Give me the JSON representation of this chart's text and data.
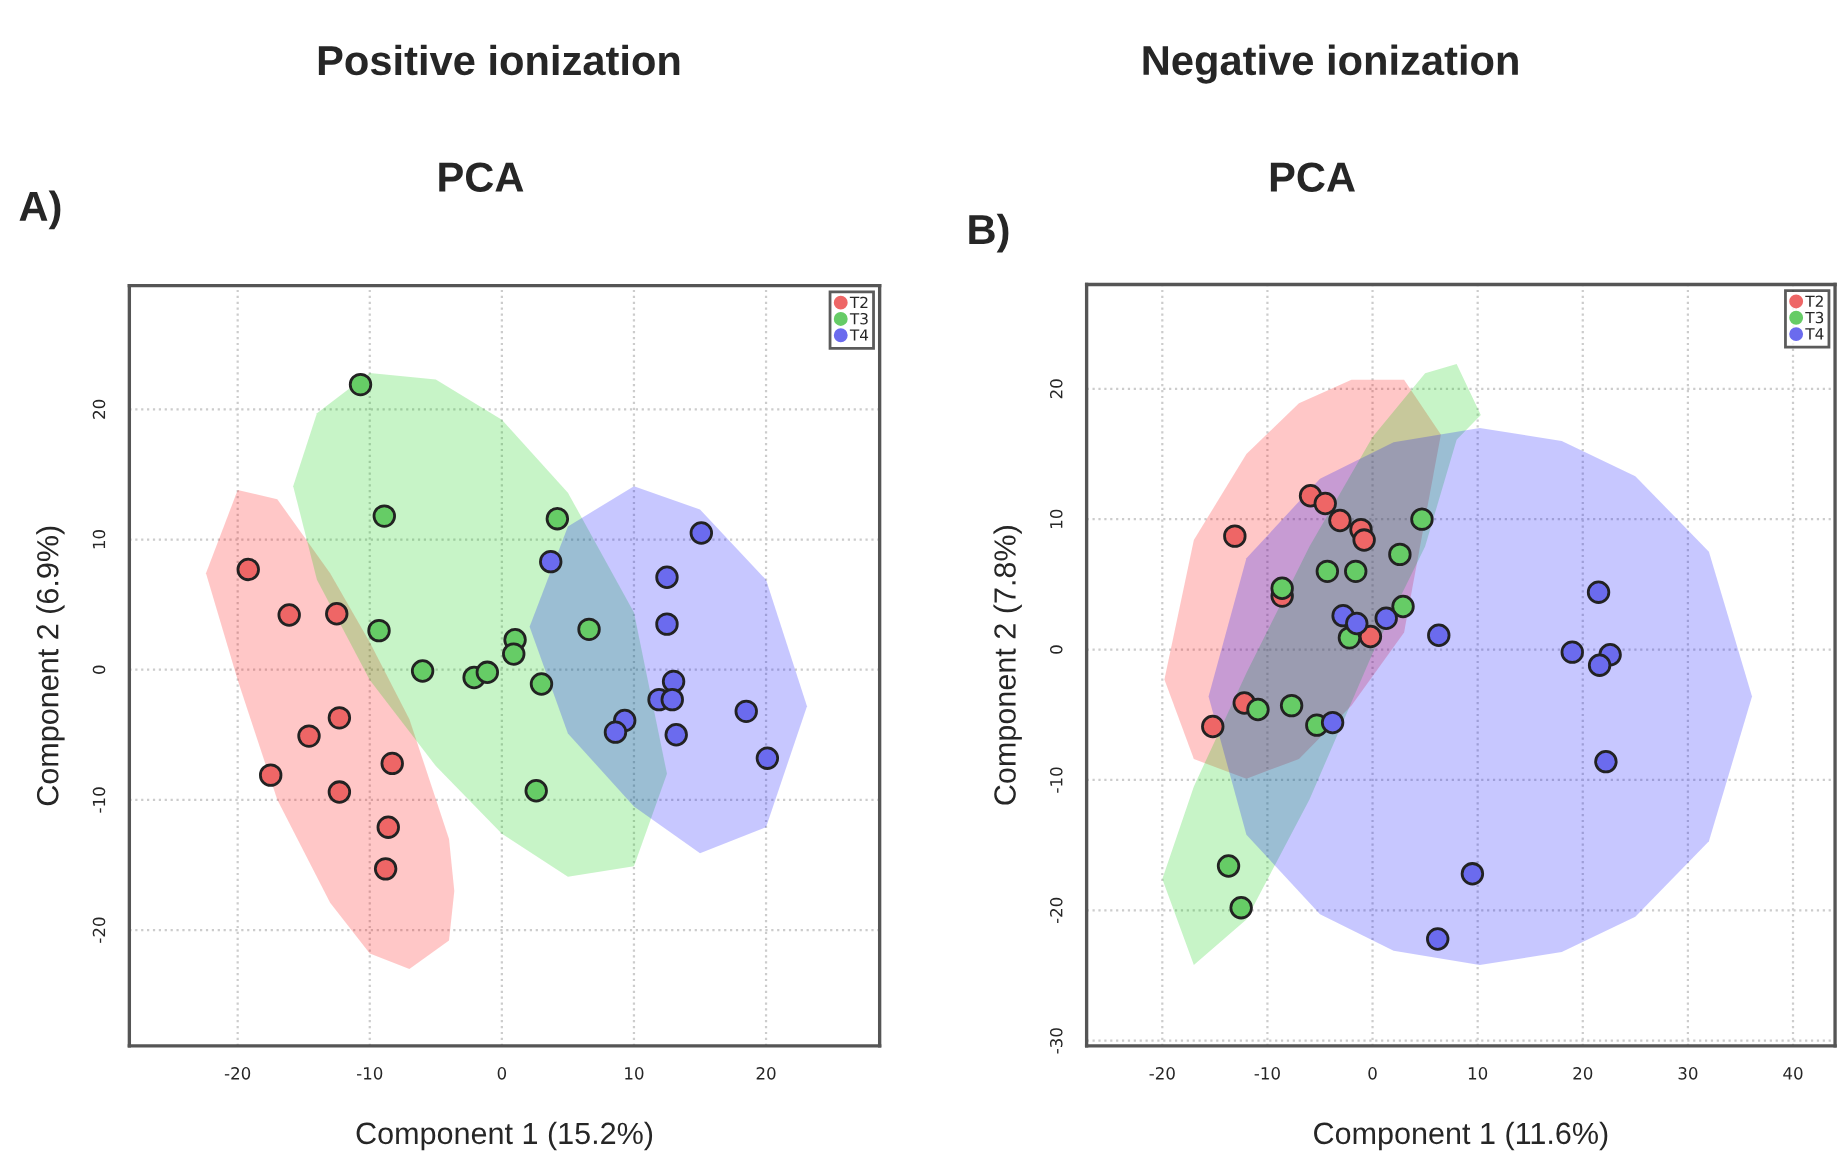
{
  "chart_data": [
    {
      "type": "scatter",
      "title": "Positive ionization",
      "subtitle": "PCA",
      "annotations": [
        "A)"
      ],
      "xlabel": "Component 1 (15.2%)",
      "ylabel": "Component 2 (6.9%)",
      "xlim": [
        -28.2,
        28.6
      ],
      "ylim": [
        -28.9,
        29.5
      ],
      "xticks": [
        -20,
        -10,
        0,
        10,
        20
      ],
      "yticks": [
        -20,
        -10,
        0,
        10,
        20
      ],
      "grid": true,
      "legend": "top right",
      "marker": "circle",
      "series": [
        {
          "type": "area",
          "marker": "none",
          "color": "#ff0000",
          "x": [
            -22.4,
            -20,
            -17,
            -13,
            -10,
            -7,
            -4,
            -3.6,
            -4,
            -7,
            -10,
            -13,
            -17,
            -20
          ],
          "values": [
            7.4,
            13.8,
            13.1,
            7.4,
            2.1,
            -3.8,
            -13,
            -17,
            -20.8,
            -23,
            -21.8,
            -17.9,
            -10,
            -0.8
          ]
        },
        {
          "type": "area",
          "marker": "none",
          "color": "#00cc00",
          "x": [
            -15.8,
            -14,
            -10,
            -5,
            0,
            5,
            10,
            12.5,
            10,
            5,
            0,
            -5,
            -10,
            -14
          ],
          "values": [
            14.1,
            19.7,
            22.8,
            22.3,
            19.2,
            13.6,
            4.4,
            -8,
            -15.1,
            -15.9,
            -12.6,
            -7.4,
            -0.8,
            6.9
          ]
        },
        {
          "type": "area",
          "marker": "none",
          "color": "#0000ff",
          "x": [
            2.1,
            5,
            10,
            15,
            20,
            23.1,
            20,
            15,
            10,
            5
          ],
          "values": [
            3.3,
            11,
            14.1,
            12.3,
            6.9,
            -2.8,
            -12.1,
            -14.1,
            -10.5,
            -4.9
          ]
        },
        {
          "name": "T2",
          "color": "#ee6666",
          "x": [
            -19.2,
            -16.1,
            -12.5,
            -12.3,
            -14.6,
            -17.5,
            -12.3,
            -8.3,
            -8.6,
            -8.8
          ],
          "values": [
            7.7,
            4.2,
            4.3,
            -3.7,
            -5.1,
            -8.1,
            -9.4,
            -7.2,
            -12.1,
            -15.3
          ]
        },
        {
          "name": "T3",
          "color": "#66cc66",
          "x": [
            -10.7,
            -8.9,
            -9.3,
            -6.0,
            -2.1,
            -1.1,
            1.0,
            0.9,
            3.0,
            4.2,
            6.6,
            2.6
          ],
          "values": [
            21.9,
            11.8,
            3.0,
            -0.1,
            -0.6,
            -0.2,
            2.3,
            1.2,
            -1.1,
            11.6,
            3.1,
            -9.3
          ]
        },
        {
          "name": "T4",
          "color": "#6b6bee",
          "x": [
            3.7,
            15.1,
            12.5,
            12.5,
            13.0,
            11.9,
            12.9,
            9.3,
            8.6,
            13.2,
            18.5,
            20.1
          ],
          "values": [
            8.3,
            10.5,
            7.1,
            3.5,
            -0.9,
            -2.3,
            -2.3,
            -3.9,
            -4.8,
            -5.0,
            -3.2,
            -6.8
          ]
        }
      ]
    },
    {
      "type": "scatter",
      "title": "Negative ionization",
      "subtitle": "PCA",
      "annotations": [
        "B)"
      ],
      "xlabel": "Component 1 (11.6%)",
      "ylabel": "Component 2 (7.8%)",
      "xlim": [
        -27.2,
        44
      ],
      "ylim": [
        -30.4,
        28
      ],
      "xticks": [
        -20,
        -10,
        0,
        10,
        20,
        30,
        40
      ],
      "yticks": [
        -30,
        -20,
        -10,
        0,
        10,
        20
      ],
      "grid": true,
      "legend": "top right",
      "marker": "circle",
      "series": [
        {
          "type": "area",
          "marker": "none",
          "color": "#ff0000",
          "x": [
            -19.8,
            -17,
            -12,
            -7,
            -2,
            3,
            6.5,
            3,
            -2,
            -7,
            -12,
            -17
          ],
          "values": [
            -2.3,
            8.4,
            15,
            18.9,
            20.7,
            20.7,
            16.5,
            1.3,
            -4.3,
            -8.4,
            -9.9,
            -8.4
          ]
        },
        {
          "type": "area",
          "marker": "none",
          "color": "#00cc00",
          "x": [
            -20,
            -17,
            -12,
            -6,
            0,
            5,
            8,
            10.3,
            8,
            5,
            0,
            -6,
            -12,
            -17
          ],
          "values": [
            -17.6,
            -10.5,
            -1.8,
            7.9,
            16.3,
            21.2,
            21.9,
            18,
            16.1,
            7.9,
            -0.3,
            -11.5,
            -20.7,
            -24.2
          ]
        },
        {
          "type": "area",
          "marker": "none",
          "color": "#0000ff",
          "x": [
            -15.6,
            -12,
            -5,
            2,
            10.2,
            18,
            25,
            32,
            36.1,
            32,
            25,
            18,
            10.2,
            2,
            -5,
            -12
          ],
          "values": [
            -3.6,
            7.0,
            13.1,
            15.9,
            17.0,
            16.0,
            13.3,
            7.5,
            -3.6,
            -14.7,
            -20.5,
            -23.2,
            -24.2,
            -23.1,
            -20.3,
            -14.2
          ]
        },
        {
          "name": "T2",
          "color": "#ee6666",
          "x": [
            -13.1,
            -5.9,
            -4.5,
            -3.1,
            -1.1,
            -0.8,
            -8.6,
            -12.2,
            -15.2,
            -0.2
          ],
          "values": [
            8.7,
            11.8,
            11.2,
            9.9,
            9.2,
            8.4,
            4.1,
            -4.1,
            -5.9,
            1.0
          ]
        },
        {
          "name": "T3",
          "color": "#66cc66",
          "x": [
            -8.6,
            -4.3,
            -1.6,
            4.7,
            2.6,
            2.9,
            -2.2,
            -10.9,
            -7.7,
            -5.3,
            -13.7,
            -12.5
          ],
          "values": [
            4.7,
            6.0,
            6.0,
            10.0,
            7.3,
            3.3,
            0.9,
            -4.6,
            -4.3,
            -5.8,
            -16.6,
            -19.8
          ]
        },
        {
          "name": "T4",
          "color": "#6b6bee",
          "x": [
            -2.8,
            -1.5,
            1.3,
            6.3,
            -3.8,
            21.5,
            19.0,
            22.6,
            21.6,
            22.2,
            9.5,
            6.2
          ],
          "values": [
            2.6,
            2.0,
            2.4,
            1.1,
            -5.6,
            4.4,
            -0.2,
            -0.4,
            -1.2,
            -8.6,
            -17.2,
            -22.2
          ]
        }
      ]
    }
  ]
}
